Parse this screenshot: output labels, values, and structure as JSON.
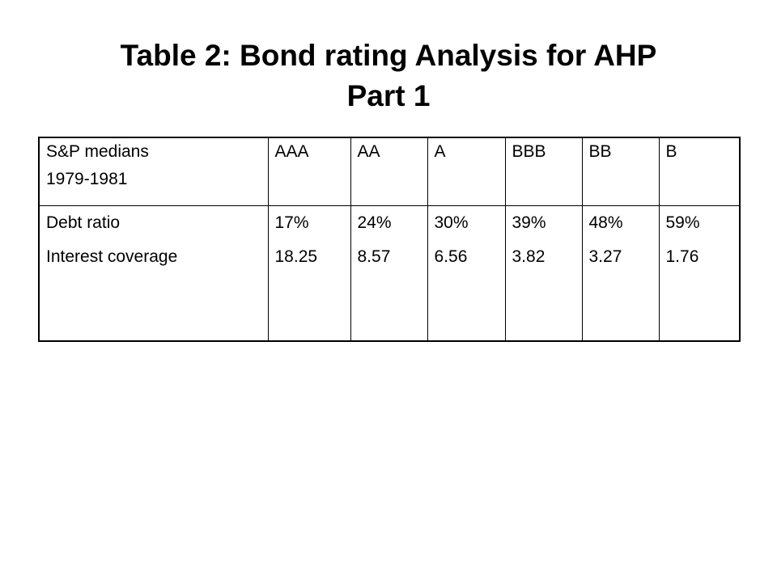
{
  "title": {
    "line1": "Table 2: Bond rating Analysis for AHP",
    "line2": "Part 1"
  },
  "table": {
    "header": {
      "label_line1": "S&P medians",
      "label_line2": "1979-1981",
      "ratings": [
        "AAA",
        "AA",
        "A",
        "BBB",
        "BB",
        "B"
      ]
    },
    "row_labels": [
      "Debt ratio",
      "Interest coverage"
    ],
    "columns": [
      {
        "debt_ratio": "17%",
        "interest_coverage": "18.25"
      },
      {
        "debt_ratio": "24%",
        "interest_coverage": "8.57"
      },
      {
        "debt_ratio": "30%",
        "interest_coverage": "6.56"
      },
      {
        "debt_ratio": "39%",
        "interest_coverage": "3.82"
      },
      {
        "debt_ratio": "48%",
        "interest_coverage": "3.27"
      },
      {
        "debt_ratio": "59%",
        "interest_coverage": "1.76"
      }
    ]
  }
}
